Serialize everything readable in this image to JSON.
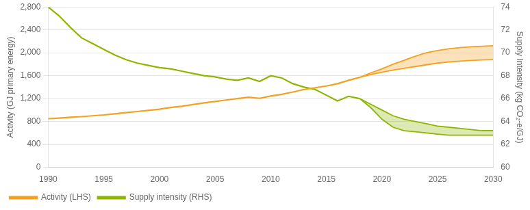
{
  "chart_data": {
    "type": "line",
    "ylabel": "Activity (GJ primary energy)",
    "y2label": "Supply Intensity (kg CO₂-e/GJ)",
    "xlim": [
      1990,
      2030
    ],
    "xticks": [
      1990,
      1995,
      2000,
      2005,
      2010,
      2015,
      2020,
      2025,
      2030
    ],
    "ylim": [
      0,
      2800
    ],
    "yticks": [
      0,
      400,
      800,
      {
        "value": 1200,
        "label": "1,200"
      },
      {
        "value": 1600,
        "label": "1,600"
      },
      {
        "value": 2000,
        "label": "2,000"
      },
      {
        "value": 2400,
        "label": "2,400"
      },
      {
        "value": 2800,
        "label": "2,800"
      }
    ],
    "y2lim": [
      60,
      74
    ],
    "y2ticks": [
      60,
      62,
      64,
      66,
      68,
      70,
      72,
      74
    ],
    "grid": true,
    "legend": "lower left",
    "series": [
      {
        "name": "Activity (LHS)",
        "color": "#F5A01E",
        "x": [
          1990,
          1991,
          1992,
          1993,
          1994,
          1995,
          1996,
          1997,
          1998,
          1999,
          2000,
          2001,
          2002,
          2003,
          2004,
          2005,
          2006,
          2007,
          2008,
          2009,
          2010,
          2011,
          2012,
          2013,
          2014,
          2015,
          2016,
          2017,
          2018
        ],
        "values": [
          849,
          860,
          875,
          885,
          900,
          915,
          935,
          955,
          975,
          995,
          1015,
          1045,
          1065,
          1095,
          1125,
          1150,
          1175,
          1200,
          1225,
          1205,
          1245,
          1275,
          1315,
          1360,
          1390,
          1420,
          1460,
          1520,
          1570
        ],
        "band_x": [
          2018,
          2019,
          2020,
          2021,
          2022,
          2023,
          2024,
          2025,
          2026,
          2027,
          2028,
          2029,
          2030
        ],
        "band_low": [
          1570,
          1620,
          1660,
          1700,
          1730,
          1760,
          1790,
          1820,
          1840,
          1855,
          1867,
          1875,
          1880
        ],
        "band_high": [
          1570,
          1650,
          1720,
          1800,
          1870,
          1940,
          2000,
          2040,
          2070,
          2090,
          2105,
          2115,
          2122
        ]
      },
      {
        "name": "Supply intensity (RHS)",
        "color": "#8DB600",
        "axis": "y2",
        "x": [
          1990,
          1991,
          1992,
          1993,
          1994,
          1995,
          1996,
          1997,
          1998,
          1999,
          2000,
          2001,
          2002,
          2003,
          2004,
          2005,
          2006,
          2007,
          2008,
          2009,
          2010,
          2011,
          2012,
          2013,
          2014,
          2015,
          2016,
          2017,
          2018
        ],
        "values": [
          74.0,
          73.2,
          72.2,
          71.3,
          70.8,
          70.3,
          69.8,
          69.4,
          69.1,
          68.9,
          68.7,
          68.6,
          68.4,
          68.2,
          68.0,
          67.9,
          67.7,
          67.6,
          67.8,
          67.5,
          68.0,
          67.8,
          67.3,
          67.0,
          66.8,
          66.3,
          65.8,
          66.2,
          66.0
        ],
        "band_x": [
          2018,
          2019,
          2020,
          2021,
          2022,
          2023,
          2024,
          2025,
          2026,
          2027,
          2028,
          2029,
          2030
        ],
        "band_low": [
          66.0,
          65.2,
          64.2,
          63.5,
          63.2,
          63.1,
          63.0,
          62.9,
          62.8,
          62.8,
          62.8,
          62.8,
          62.8
        ],
        "band_high": [
          66.0,
          65.5,
          65.0,
          64.5,
          64.2,
          64.0,
          63.8,
          63.6,
          63.5,
          63.4,
          63.3,
          63.2,
          63.2
        ]
      }
    ]
  }
}
